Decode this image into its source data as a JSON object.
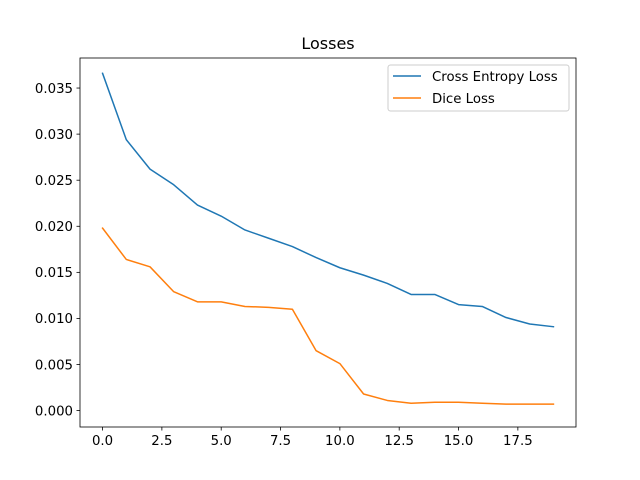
{
  "chart_data": {
    "type": "line",
    "title": "Losses",
    "xlabel": "",
    "ylabel": "",
    "xlim": [
      -0.95,
      19.95
    ],
    "ylim": [
      -0.00178,
      0.03826
    ],
    "xticks": [
      0.0,
      2.5,
      5.0,
      7.5,
      10.0,
      12.5,
      15.0,
      17.5
    ],
    "xtick_labels": [
      "0.0",
      "2.5",
      "5.0",
      "7.5",
      "10.0",
      "12.5",
      "15.0",
      "17.5"
    ],
    "yticks": [
      0.0,
      0.005,
      0.01,
      0.015,
      0.02,
      0.025,
      0.03,
      0.035
    ],
    "ytick_labels": [
      "0.000",
      "0.005",
      "0.010",
      "0.015",
      "0.020",
      "0.025",
      "0.030",
      "0.035"
    ],
    "grid": false,
    "legend_position": "top-right",
    "x": [
      0,
      1,
      2,
      3,
      4,
      5,
      6,
      7,
      8,
      9,
      10,
      11,
      12,
      13,
      14,
      15,
      16,
      17,
      18,
      19
    ],
    "series": [
      {
        "name": "Cross Entropy Loss",
        "color": "#1f77b4",
        "values": [
          0.0366,
          0.0294,
          0.0262,
          0.0245,
          0.0223,
          0.0211,
          0.0196,
          0.0187,
          0.0178,
          0.0166,
          0.0155,
          0.0147,
          0.0138,
          0.0126,
          0.0126,
          0.0115,
          0.0113,
          0.0101,
          0.0094,
          0.0091
        ]
      },
      {
        "name": "Dice Loss",
        "color": "#ff7f0e",
        "values": [
          0.0198,
          0.0164,
          0.0156,
          0.0129,
          0.0118,
          0.0118,
          0.0113,
          0.0112,
          0.011,
          0.0065,
          0.0051,
          0.0018,
          0.0011,
          0.0008,
          0.0009,
          0.0009,
          0.0008,
          0.0007,
          0.0007,
          0.0007
        ]
      }
    ]
  }
}
